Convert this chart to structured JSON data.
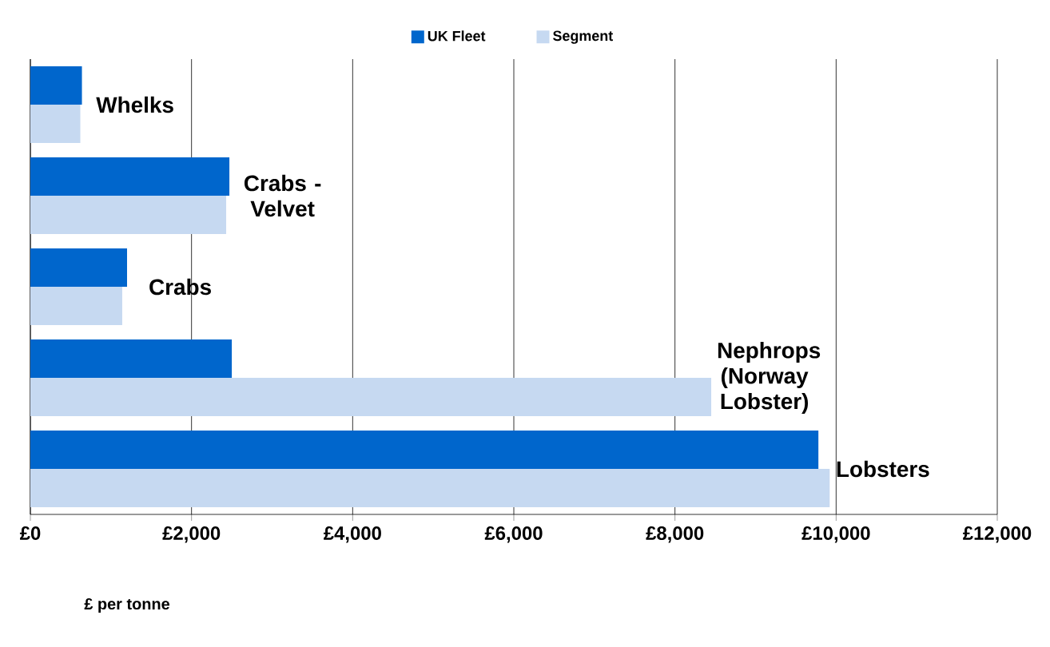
{
  "chart_data": {
    "type": "bar",
    "orientation": "horizontal",
    "xlabel": "£ per tonne",
    "categories": [
      "Whelks",
      "Crabs - Velvet",
      "Crabs",
      "Nephrops (Norway Lobster)",
      "Lobsters"
    ],
    "series": [
      {
        "name": "UK Fleet",
        "color": "#0066cc",
        "values": [
          640,
          2470,
          1200,
          2500,
          9780
        ]
      },
      {
        "name": "Segment",
        "color": "#c6d9f1",
        "values": [
          620,
          2430,
          1140,
          8450,
          9920
        ]
      }
    ],
    "xlim": [
      0,
      12000
    ],
    "xticks": [
      {
        "value": 0,
        "label": "£0"
      },
      {
        "value": 2000,
        "label": "£2,000"
      },
      {
        "value": 4000,
        "label": "£4,000"
      },
      {
        "value": 6000,
        "label": "£6,000"
      },
      {
        "value": 8000,
        "label": "£8,000"
      },
      {
        "value": 10000,
        "label": "£10,000"
      },
      {
        "value": 12000,
        "label": "£12,000"
      }
    ],
    "grid": "x",
    "legend": "top"
  }
}
